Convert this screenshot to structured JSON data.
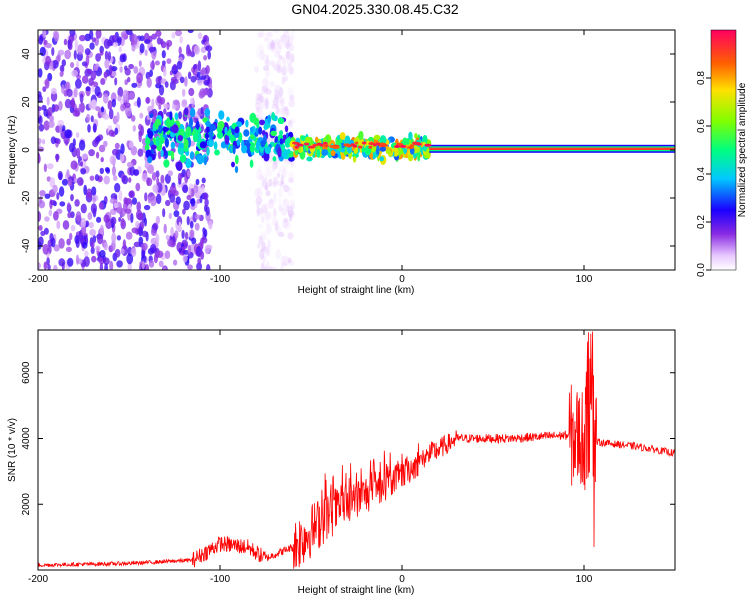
{
  "title": "GN04.2025.330.08.45.C32",
  "chart_data": [
    {
      "type": "heatmap",
      "xlabel": "Height of straight line (km)",
      "ylabel": "Frequency (Hz)",
      "xlim": [
        -200,
        150
      ],
      "ylim": [
        -50,
        50
      ],
      "xticks": [
        -200,
        -100,
        0,
        100
      ],
      "yticks": [
        -40,
        -20,
        0,
        20,
        40
      ],
      "colorbar": {
        "label": "Normalized spectral amplitude",
        "range": [
          0,
          1
        ],
        "ticks": [
          "0.0",
          "0.2",
          "0.4",
          "0.6",
          "0.8"
        ]
      },
      "features": [
        {
          "region": "broadband noise",
          "x_range": [
            -200,
            -105
          ],
          "freq_range": [
            -50,
            50
          ],
          "amplitude": 0.15
        },
        {
          "region": "broadband noise (sparse)",
          "x_range": [
            -80,
            -60
          ],
          "freq_range": [
            -50,
            50
          ],
          "amplitude": 0.05
        },
        {
          "region": "emerging signal",
          "x_range": [
            -140,
            -60
          ],
          "freq_range": [
            -5,
            15
          ],
          "amplitude": 0.4
        },
        {
          "region": "narrowband signal",
          "x_range": [
            -60,
            15
          ],
          "freq_range": [
            -3,
            5
          ],
          "amplitude": 0.7
        },
        {
          "region": "steady narrowband line",
          "x_range": [
            15,
            150
          ],
          "freq_range": [
            -1,
            2
          ],
          "amplitude": 0.95
        }
      ]
    },
    {
      "type": "line",
      "xlabel": "Height of straight line (km)",
      "ylabel": "SNR (10 * v/v)",
      "xlim": [
        -200,
        150
      ],
      "ylim": [
        0,
        7300
      ],
      "xticks": [
        -200,
        -100,
        0,
        100
      ],
      "yticks": [
        2000,
        4000,
        6000
      ],
      "color": "#ff0000",
      "envelope": [
        {
          "x": -200,
          "y": 150
        },
        {
          "x": -150,
          "y": 200
        },
        {
          "x": -115,
          "y": 300
        },
        {
          "x": -100,
          "y": 800
        },
        {
          "x": -85,
          "y": 700
        },
        {
          "x": -75,
          "y": 350
        },
        {
          "x": -60,
          "y": 700
        },
        {
          "x": -40,
          "y": 1700
        },
        {
          "x": -20,
          "y": 2300
        },
        {
          "x": 0,
          "y": 2900
        },
        {
          "x": 15,
          "y": 3500
        },
        {
          "x": 30,
          "y": 4000
        },
        {
          "x": 60,
          "y": 4000
        },
        {
          "x": 90,
          "y": 4100
        },
        {
          "x": 100,
          "y": 4000
        },
        {
          "x": 106,
          "y": 3900
        },
        {
          "x": 130,
          "y": 3750
        },
        {
          "x": 150,
          "y": 3550
        }
      ]
    }
  ]
}
